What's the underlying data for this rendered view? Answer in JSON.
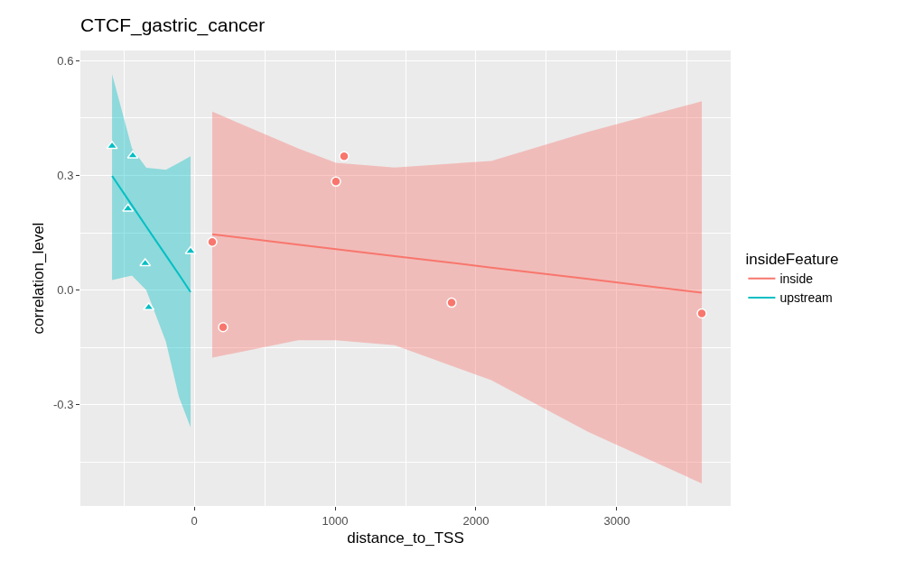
{
  "chart_data": {
    "type": "scatter",
    "title": "CTCF_gastric_cancer",
    "xlabel": "distance_to_TSS",
    "ylabel": "correlation_level",
    "legend_title": "insideFeature",
    "xlim": [
      -808,
      3808
    ],
    "ylim": [
      -0.565,
      0.627
    ],
    "xticks": [
      0,
      1000,
      2000,
      3000
    ],
    "yticks": [
      {
        "value": -0.3,
        "label": "-0.3"
      },
      {
        "value": 0,
        "label": "0.0"
      },
      {
        "value": 0.3,
        "label": "0.3"
      },
      {
        "value": 0.6,
        "label": "0.6"
      }
    ],
    "grid": true,
    "legend": "right",
    "series": [
      {
        "type": "line",
        "name": "inside",
        "color": "#f8766d",
        "x": [
          128,
          737,
          1006,
          1423,
          2109,
          2795,
          3603
        ],
        "values": [
          0.146,
          0.119,
          0.107,
          0.089,
          0.059,
          0.029,
          -0.007
        ],
        "lower": [
          -0.177,
          -0.131,
          -0.131,
          -0.144,
          -0.236,
          -0.371,
          -0.506
        ],
        "upper": [
          0.467,
          0.371,
          0.333,
          0.321,
          0.338,
          0.414,
          0.494
        ]
      },
      {
        "type": "line",
        "name": "upstream",
        "color": "#00bfc4",
        "x": [
          -583,
          -442,
          -340,
          -201,
          -109,
          -26
        ],
        "values": [
          0.299,
          0.222,
          0.166,
          0.091,
          0.041,
          -0.005
        ],
        "lower": [
          0.026,
          0.038,
          0.0,
          -0.135,
          -0.279,
          -0.359
        ],
        "upper": [
          0.565,
          0.371,
          0.32,
          0.315,
          0.333,
          0.35
        ]
      },
      {
        "color": "#f8766d",
        "x": [
          128,
          205,
          1006,
          1064,
          1827,
          3603
        ],
        "values": [
          0.126,
          -0.097,
          0.284,
          0.35,
          -0.033,
          -0.061
        ],
        "marker": "circle"
      },
      {
        "color": "#00bfc4",
        "x": [
          -583,
          -470,
          -436,
          -348,
          -323,
          -26
        ],
        "values": [
          0.377,
          0.213,
          0.352,
          0.07,
          -0.045,
          0.102
        ],
        "marker": "triangle"
      }
    ]
  }
}
